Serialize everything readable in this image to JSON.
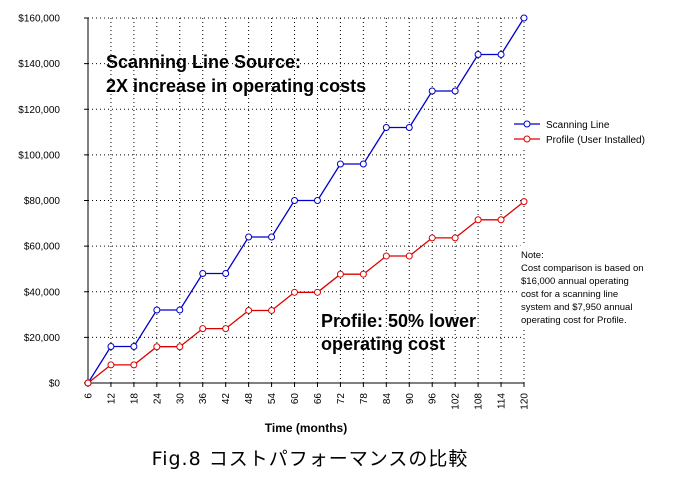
{
  "chart_data": {
    "type": "line",
    "xlabel": "Time (months)",
    "ylabel": "",
    "x": [
      6,
      12,
      18,
      24,
      30,
      36,
      42,
      48,
      54,
      60,
      66,
      72,
      78,
      84,
      90,
      96,
      102,
      108,
      114,
      120
    ],
    "x_tick_labels": [
      "6",
      "12",
      "18",
      "24",
      "30",
      "36",
      "42",
      "48",
      "54",
      "60",
      "66",
      "72",
      "78",
      "84",
      "90",
      "96",
      "102",
      "108",
      "114",
      "120"
    ],
    "ylim": [
      0,
      160000
    ],
    "y_ticks": [
      0,
      20000,
      40000,
      60000,
      80000,
      100000,
      120000,
      140000,
      160000
    ],
    "y_tick_labels": [
      "$0",
      "$20,000",
      "$40,000",
      "$60,000",
      "$80,000",
      "$100,000",
      "$120,000",
      "$140,000",
      "$160,000"
    ],
    "grid": true,
    "legend_position": "right",
    "series": [
      {
        "name": "Scanning Line",
        "color": "#0000cc",
        "values": [
          0,
          16000,
          16000,
          32000,
          32000,
          48000,
          48000,
          64000,
          64000,
          80000,
          80000,
          96000,
          96000,
          112000,
          112000,
          128000,
          128000,
          144000,
          144000,
          160000
        ]
      },
      {
        "name": "Profile (User Installed)",
        "color": "#dd0000",
        "values": [
          0,
          7950,
          7950,
          15900,
          15900,
          23850,
          23850,
          31800,
          31800,
          39750,
          39750,
          47700,
          47700,
          55650,
          55650,
          63600,
          63600,
          71550,
          71550,
          79500
        ]
      }
    ],
    "annotations": {
      "scanning_line": [
        "Scanning Line Source:",
        "2X increase in operating costs"
      ],
      "profile": [
        "Profile: 50% lower",
        "operating cost"
      ],
      "note": [
        "Note:",
        "Cost comparison is based on",
        "$16,000 annual operating",
        "cost for a scanning line",
        "system and $7,950 annual",
        "operating cost for Profile."
      ]
    }
  },
  "caption": "Fig.8 コストパフォーマンスの比較"
}
